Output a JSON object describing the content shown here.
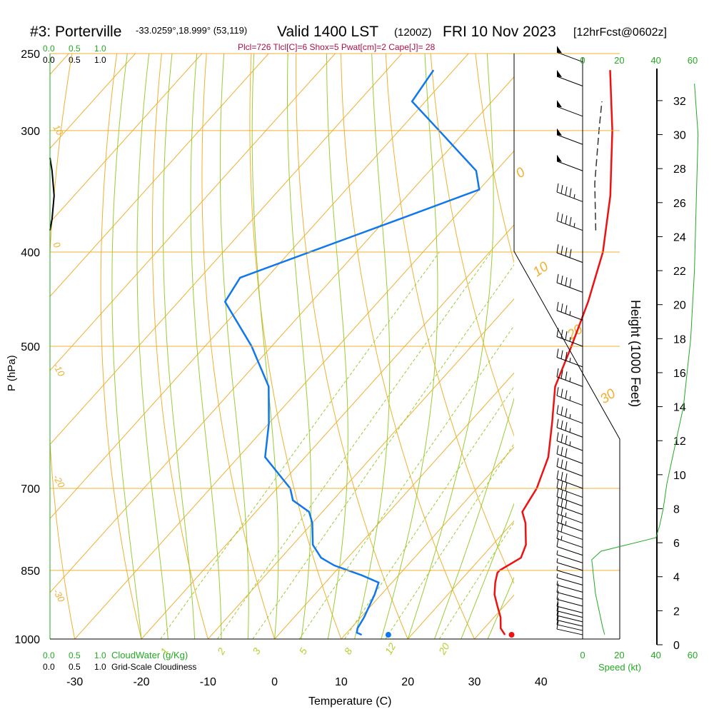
{
  "header": {
    "station": "#3: Porterville",
    "coords": "-33.0259°,18.999° (53,119)",
    "valid": "Valid 1400 LST",
    "utc": "(1200Z)",
    "date": "FRI 10 Nov 2023",
    "forecast": "[12hrFcst@0602z]"
  },
  "indices": "Plcl=726 Tlcl[C]=6 Shox=5 Pwat[cm]=2 Cape[J]= 28",
  "colors": {
    "isobar": "#f0b030",
    "dry_adiabat": "#f0b030",
    "moist_adiabat": "#99cc33",
    "mixing_ratio": "#99cc33",
    "temperature": "#ee1111",
    "dewpoint": "#1177ee",
    "green_text": "#22aa22",
    "indices_text": "#aa1144"
  },
  "scales": {
    "cloud_water_top": [
      "0.0",
      "0.5",
      "1.0"
    ],
    "cloudiness_top": [
      "0.0",
      "0.5",
      "1.0"
    ],
    "cloud_water_bottom": [
      "0.0",
      "0.5",
      "1.0"
    ],
    "cloudiness_bottom": [
      "0.0",
      "0.5",
      "1.0"
    ],
    "cloud_water_label": "CloudWater (g/Kg)",
    "cloudiness_label": "Grid-Scale Cloudiness",
    "speed_top": [
      "0",
      "20",
      "40",
      "60"
    ],
    "speed_bottom": [
      "0",
      "20",
      "40",
      "60"
    ],
    "speed_label": "Speed (kt)"
  },
  "chart_data": {
    "type": "skew-t log-p sounding",
    "title": "#3: Porterville Valid 1400 LST (1200Z) FRI 10 Nov 2023 [12hrFcst@0602z]",
    "xlabel": "Temperature (C)",
    "ylabel": "P (hPa)",
    "y2label": "Height (1000 Feet)",
    "xlim": [
      -33,
      47
    ],
    "ylim": [
      1000,
      250
    ],
    "x_ticks": [
      -30,
      -20,
      -10,
      0,
      10,
      20,
      30,
      40
    ],
    "pressure_ticks": [
      250,
      300,
      400,
      500,
      700,
      850,
      1000
    ],
    "height_ticks": [
      0,
      2,
      4,
      6,
      8,
      10,
      12,
      14,
      16,
      18,
      20,
      22,
      24,
      26,
      28,
      30,
      32
    ],
    "temp_labels_on_adiabats": [
      "0",
      "10",
      "20",
      "30"
    ],
    "dry_adiabat_labels": [
      "10",
      "0",
      "-10",
      "-20",
      "-30"
    ],
    "mixing_ratio_labels": [
      "1",
      "2",
      "3",
      "5",
      "8",
      "12",
      "20"
    ],
    "temperature_profile": [
      {
        "p": 990,
        "t": 34.0
      },
      {
        "p": 975,
        "t": 32.5
      },
      {
        "p": 950,
        "t": 31.0
      },
      {
        "p": 925,
        "t": 29.0
      },
      {
        "p": 900,
        "t": 27.0
      },
      {
        "p": 875,
        "t": 25.5
      },
      {
        "p": 855,
        "t": 24.5
      },
      {
        "p": 850,
        "t": 24.5
      },
      {
        "p": 825,
        "t": 26.0
      },
      {
        "p": 800,
        "t": 25.0
      },
      {
        "p": 760,
        "t": 22.0
      },
      {
        "p": 740,
        "t": 20.0
      },
      {
        "p": 720,
        "t": 19.5
      },
      {
        "p": 700,
        "t": 19.0
      },
      {
        "p": 650,
        "t": 16.5
      },
      {
        "p": 600,
        "t": 12.5
      },
      {
        "p": 550,
        "t": 8.0
      },
      {
        "p": 500,
        "t": 5.0
      },
      {
        "p": 450,
        "t": 1.5
      },
      {
        "p": 400,
        "t": -3.0
      },
      {
        "p": 350,
        "t": -9.5
      },
      {
        "p": 300,
        "t": -18.0
      },
      {
        "p": 260,
        "t": -26.5
      }
    ],
    "dewpoint_profile": [
      {
        "p": 990,
        "t": 12.5
      },
      {
        "p": 985,
        "t": 11.5
      },
      {
        "p": 975,
        "t": 11.0
      },
      {
        "p": 950,
        "t": 10.5
      },
      {
        "p": 900,
        "t": 9.0
      },
      {
        "p": 875,
        "t": 8.0
      },
      {
        "p": 860,
        "t": 4.5
      },
      {
        "p": 840,
        "t": -1.0
      },
      {
        "p": 825,
        "t": -4.0
      },
      {
        "p": 800,
        "t": -7.0
      },
      {
        "p": 760,
        "t": -10.0
      },
      {
        "p": 740,
        "t": -12.0
      },
      {
        "p": 720,
        "t": -16.0
      },
      {
        "p": 700,
        "t": -18.0
      },
      {
        "p": 650,
        "t": -26.0
      },
      {
        "p": 600,
        "t": -30.0
      },
      {
        "p": 550,
        "t": -35.0
      },
      {
        "p": 500,
        "t": -43.0
      },
      {
        "p": 450,
        "t": -53.0
      },
      {
        "p": 425,
        "t": -54.0
      },
      {
        "p": 370,
        "t": -38.0
      },
      {
        "p": 345,
        "t": -30.0
      },
      {
        "p": 330,
        "t": -33.0
      },
      {
        "p": 300,
        "t": -44.0
      },
      {
        "p": 280,
        "t": -52.0
      },
      {
        "p": 260,
        "t": -53.0
      }
    ],
    "parcel_profile": [
      {
        "p": 380,
        "t": -7.0
      },
      {
        "p": 340,
        "t": -13.5
      },
      {
        "p": 300,
        "t": -20.0
      },
      {
        "p": 280,
        "t": -23.5
      }
    ],
    "surface_temperature_marker": {
      "p": 990,
      "t": 35.0
    },
    "surface_dewpoint_marker": {
      "p": 990,
      "t": 16.5
    },
    "cloud_water_profile": [
      {
        "p": 330,
        "value": 0.05
      },
      {
        "p": 350,
        "value": 0.1
      },
      {
        "p": 370,
        "value": 0.05
      }
    ],
    "wind_speed_kt": [
      {
        "h": 0.6,
        "s": 12
      },
      {
        "h": 1.0,
        "s": 11
      },
      {
        "h": 2.0,
        "s": 9
      },
      {
        "h": 3.0,
        "s": 7
      },
      {
        "h": 4.0,
        "s": 6
      },
      {
        "h": 5.0,
        "s": 5
      },
      {
        "h": 5.5,
        "s": 10
      },
      {
        "h": 6.3,
        "s": 40
      },
      {
        "h": 7.0,
        "s": 42
      },
      {
        "h": 8.0,
        "s": 44
      },
      {
        "h": 9.5,
        "s": 46
      },
      {
        "h": 11.0,
        "s": 49
      },
      {
        "h": 14.0,
        "s": 55
      },
      {
        "h": 18.0,
        "s": 59
      },
      {
        "h": 22.0,
        "s": 61
      },
      {
        "h": 26.0,
        "s": 62
      },
      {
        "h": 30.0,
        "s": 63
      },
      {
        "h": 33.0,
        "s": 61
      }
    ],
    "wind_barbs": [
      {
        "p": 990,
        "dir": 180,
        "spd": 10
      },
      {
        "p": 980,
        "dir": 185,
        "spd": 10
      },
      {
        "p": 970,
        "dir": 190,
        "spd": 10
      },
      {
        "p": 960,
        "dir": 195,
        "spd": 10
      },
      {
        "p": 950,
        "dir": 200,
        "spd": 10
      },
      {
        "p": 940,
        "dir": 205,
        "spd": 10
      },
      {
        "p": 925,
        "dir": 210,
        "spd": 10
      },
      {
        "p": 910,
        "dir": 215,
        "spd": 10
      },
      {
        "p": 895,
        "dir": 220,
        "spd": 5
      },
      {
        "p": 880,
        "dir": 225,
        "spd": 5
      },
      {
        "p": 865,
        "dir": 230,
        "spd": 5
      },
      {
        "p": 850,
        "dir": 240,
        "spd": 5
      },
      {
        "p": 835,
        "dir": 250,
        "spd": 5
      },
      {
        "p": 820,
        "dir": 260,
        "spd": 10
      },
      {
        "p": 805,
        "dir": 265,
        "spd": 15
      },
      {
        "p": 790,
        "dir": 270,
        "spd": 20
      },
      {
        "p": 775,
        "dir": 275,
        "spd": 25
      },
      {
        "p": 760,
        "dir": 280,
        "spd": 25
      },
      {
        "p": 745,
        "dir": 280,
        "spd": 30
      },
      {
        "p": 730,
        "dir": 285,
        "spd": 30
      },
      {
        "p": 715,
        "dir": 285,
        "spd": 30
      },
      {
        "p": 700,
        "dir": 285,
        "spd": 30
      },
      {
        "p": 680,
        "dir": 290,
        "spd": 30
      },
      {
        "p": 660,
        "dir": 290,
        "spd": 30
      },
      {
        "p": 640,
        "dir": 290,
        "spd": 35
      },
      {
        "p": 620,
        "dir": 290,
        "spd": 35
      },
      {
        "p": 600,
        "dir": 290,
        "spd": 35
      },
      {
        "p": 575,
        "dir": 290,
        "spd": 35
      },
      {
        "p": 550,
        "dir": 290,
        "spd": 35
      },
      {
        "p": 525,
        "dir": 290,
        "spd": 35
      },
      {
        "p": 500,
        "dir": 290,
        "spd": 35
      },
      {
        "p": 470,
        "dir": 290,
        "spd": 35
      },
      {
        "p": 440,
        "dir": 290,
        "spd": 40
      },
      {
        "p": 410,
        "dir": 290,
        "spd": 40
      },
      {
        "p": 380,
        "dir": 290,
        "spd": 45
      },
      {
        "p": 355,
        "dir": 290,
        "spd": 45
      },
      {
        "p": 330,
        "dir": 290,
        "spd": 50
      },
      {
        "p": 310,
        "dir": 290,
        "spd": 50
      },
      {
        "p": 290,
        "dir": 290,
        "spd": 50
      },
      {
        "p": 270,
        "dir": 290,
        "spd": 50
      },
      {
        "p": 255,
        "dir": 290,
        "spd": 50
      }
    ]
  }
}
